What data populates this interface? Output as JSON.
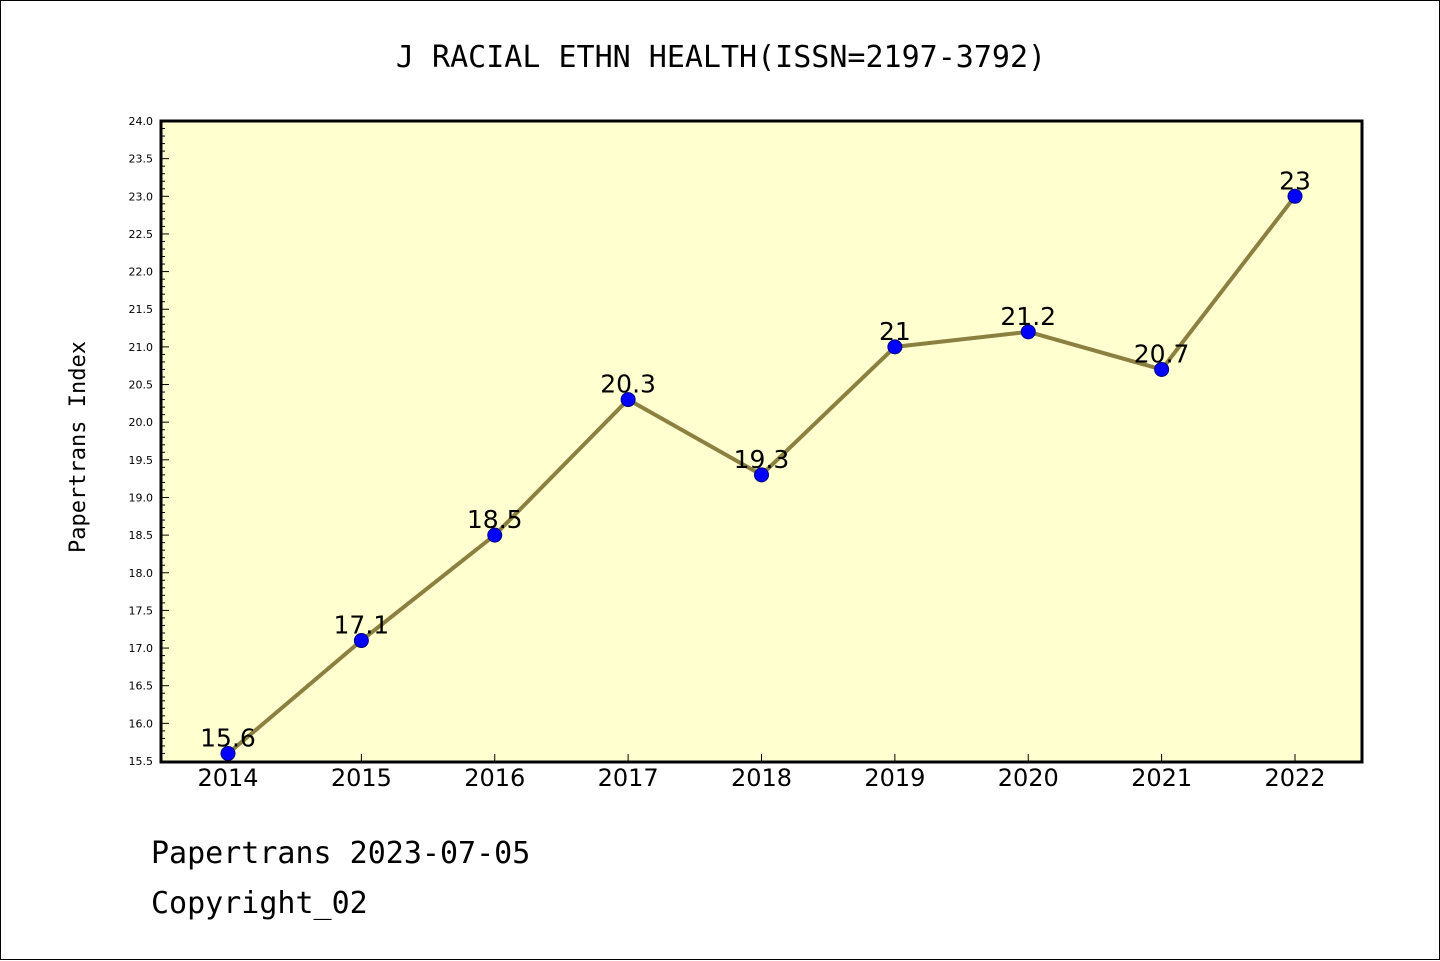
{
  "chart_data": {
    "type": "line",
    "title": "J RACIAL ETHN HEALTH(ISSN=2197-3792)",
    "xlabel": "",
    "ylabel": "Papertrans Index",
    "categories": [
      "2014",
      "2015",
      "2016",
      "2017",
      "2018",
      "2019",
      "2020",
      "2021",
      "2022"
    ],
    "values": [
      15.6,
      17.1,
      18.5,
      20.3,
      19.3,
      21,
      21.2,
      20.7,
      23
    ],
    "data_labels": [
      "15.6",
      "17.1",
      "18.5",
      "20.3",
      "19.3",
      "21",
      "21.2",
      "20.7",
      "23"
    ],
    "ylim": [
      15.5,
      24.0
    ],
    "yticks": [
      "15.5",
      "16.0",
      "16.5",
      "17.0",
      "17.5",
      "18.0",
      "18.5",
      "19.0",
      "19.5",
      "20.0",
      "20.5",
      "21.0",
      "21.5",
      "22.0",
      "22.5",
      "23.0",
      "23.5",
      "24.0"
    ],
    "grid": false,
    "legend": "none",
    "colors": {
      "plot_background": "#ffffd0",
      "line": "#8b8040",
      "marker": "#0000ff",
      "marker_edge": "#000080",
      "axes": "#000000"
    }
  },
  "footer": {
    "line1": "Papertrans 2023-07-05",
    "line2": "Copyright_02"
  }
}
